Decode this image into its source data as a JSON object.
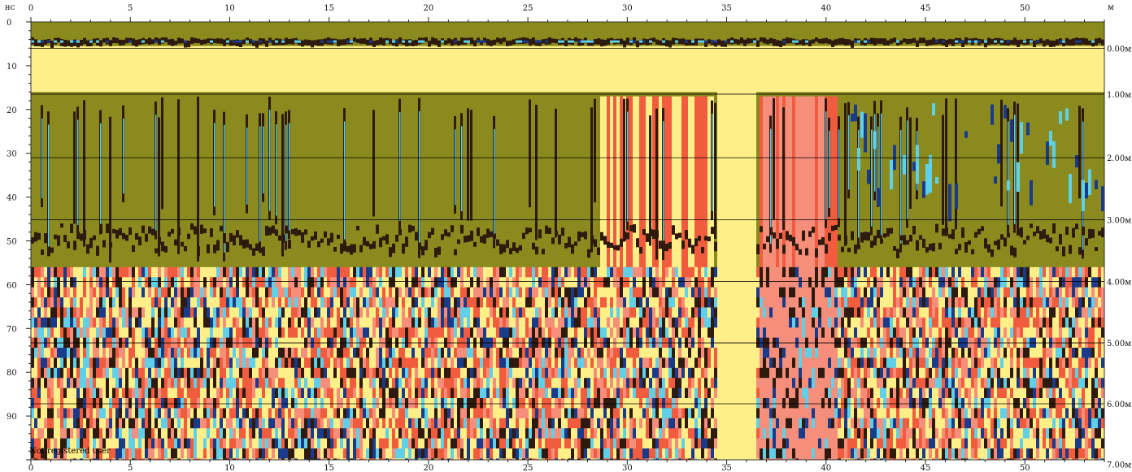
{
  "chart_data": {
    "type": "heatmap",
    "description_kind": "ground-penetrating radar profile (radargram)",
    "x_unit": "м",
    "y_unit": "нс",
    "xlim": [
      0,
      54
    ],
    "ylim": [
      0,
      100
    ],
    "x_ticks": [
      0,
      5,
      10,
      15,
      20,
      25,
      30,
      35,
      40,
      45,
      50
    ],
    "y_ticks": [
      0,
      10,
      20,
      30,
      40,
      50,
      60,
      70,
      80,
      90
    ],
    "depth_scale": {
      "unit_suffix": "м",
      "levels": [
        {
          "ns": 6,
          "label": "0.00м"
        },
        {
          "ns": 16.5,
          "label": "1.00м"
        },
        {
          "ns": 31,
          "label": "2.00м"
        },
        {
          "ns": 45.2,
          "label": "3.00м"
        },
        {
          "ns": 59.3,
          "label": "4.00м"
        },
        {
          "ns": 73.3,
          "label": "5.00м"
        },
        {
          "ns": 87.2,
          "label": "6.00м"
        },
        {
          "ns": 101,
          "label": "7.00м"
        }
      ]
    },
    "palette": [
      "#8a8a1e",
      "#2e1a0e",
      "#5fd0e8",
      "#1a3a8a",
      "#f25c3e",
      "#ffef88"
    ],
    "zones": [
      {
        "from": 28.6,
        "to": 34.2,
        "kind": "wideband noise"
      },
      {
        "from": 34.4,
        "to": 36.4,
        "kind": "bright vertical stripe"
      },
      {
        "from": 36.5,
        "to": 40.5,
        "kind": "anomaly"
      },
      {
        "from": 41,
        "to": 54,
        "kind": "blue-cyan layered"
      }
    ]
  },
  "watermark": "Not registered user",
  "colors": {
    "olive": "#8a8a1e",
    "dark": "#2e1a0e",
    "cyan": "#5fd0e8",
    "navy": "#1a3a8a",
    "red": "#f25c3e",
    "yellow": "#ffef88",
    "pink": "#f68e7c"
  }
}
